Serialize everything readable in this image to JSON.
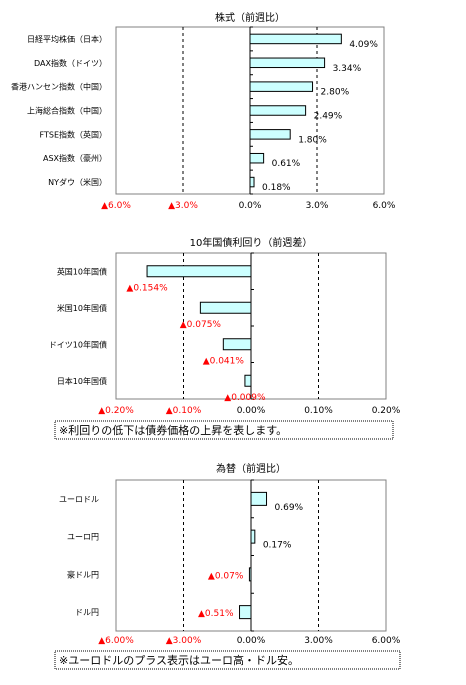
{
  "chart_data": [
    {
      "type": "bar",
      "orientation": "horizontal",
      "title": "株式（前週比）",
      "categories": [
        "日経平均株価（日本）",
        "DAX指数（ドイツ）",
        "香港ハンセン指数（中国）",
        "上海総合指数（中国）",
        "FTSE指数（英国）",
        "ASX指数（豪州）",
        "NYダウ（米国）"
      ],
      "values": [
        4.09,
        3.34,
        2.8,
        2.49,
        1.8,
        0.61,
        0.18
      ],
      "value_labels": [
        "4.09%",
        "3.34%",
        "2.80%",
        "2.49%",
        "1.80%",
        "0.61%",
        "0.18%"
      ],
      "xlim": [
        -6,
        6
      ],
      "ticks": [
        -6,
        -3,
        0,
        3,
        6
      ],
      "tick_labels": [
        "▲6.0%",
        "▲3.0%",
        "0.0%",
        "3.0%",
        "6.0%"
      ],
      "note": ""
    },
    {
      "type": "bar",
      "orientation": "horizontal",
      "title": "10年国債利回り（前週差）",
      "categories": [
        "英国10年国債",
        "米国10年国債",
        "ドイツ10年国債",
        "日本10年国債"
      ],
      "values": [
        -0.154,
        -0.075,
        -0.041,
        -0.009
      ],
      "value_labels": [
        "▲0.154%",
        "▲0.075%",
        "▲0.041%",
        "▲0.009%"
      ],
      "xlim": [
        -0.2,
        0.2
      ],
      "ticks": [
        -0.2,
        -0.1,
        0,
        0.1,
        0.2
      ],
      "tick_labels": [
        "▲0.20%",
        "▲0.10%",
        "0.00%",
        "0.10%",
        "0.20%"
      ],
      "note": "※利回りの低下は債券価格の上昇を表します。"
    },
    {
      "type": "bar",
      "orientation": "horizontal",
      "title": "為替（前週比）",
      "categories": [
        "ユーロドル",
        "ユーロ円",
        "豪ドル円",
        "ドル円"
      ],
      "values": [
        0.69,
        0.17,
        -0.07,
        -0.51
      ],
      "value_labels": [
        "0.69%",
        "0.17%",
        "▲0.07%",
        "▲0.51%"
      ],
      "xlim": [
        -6,
        6
      ],
      "ticks": [
        -6,
        -3,
        0,
        3,
        6
      ],
      "tick_labels": [
        "▲6.00%",
        "▲3.00%",
        "0.00%",
        "3.00%",
        "6.00%"
      ],
      "note": "※ユーロドルのプラス表示はユーロ高・ドル安。"
    }
  ],
  "colors": {
    "bar_fill": "#ccffff",
    "bar_stroke": "#000000",
    "negative_text": "#ff0000",
    "text": "#000000",
    "frame": "#808080"
  }
}
